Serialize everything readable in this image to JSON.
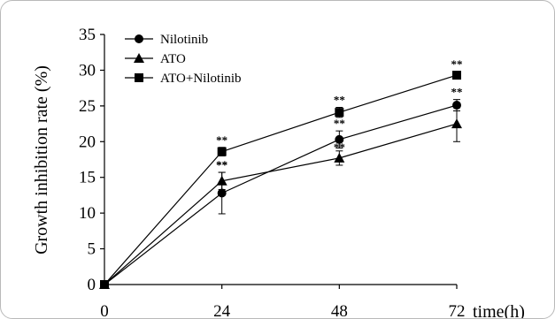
{
  "chart_data": {
    "type": "line",
    "x": [
      0,
      24,
      48,
      72
    ],
    "xlabel": "time(h)",
    "ylabel": "Growth inhibition rate (%)",
    "ylim": [
      0,
      35
    ],
    "yticks": [
      0,
      5,
      10,
      15,
      20,
      25,
      30,
      35
    ],
    "xticks": [
      0,
      24,
      48,
      72
    ],
    "legend_position": "top-left",
    "grid": false,
    "series": [
      {
        "name": "Nilotinib",
        "marker": "circle",
        "values": [
          0,
          12.8,
          20.3,
          25.1
        ],
        "errors": [
          0,
          2.9,
          1.2,
          0.8
        ],
        "annotations": [
          "",
          "",
          "**",
          "**"
        ]
      },
      {
        "name": "ATO",
        "marker": "triangle",
        "values": [
          0,
          14.5,
          17.7,
          22.5
        ],
        "errors": [
          0,
          1.2,
          1.0,
          2.5
        ],
        "annotations": [
          "",
          "**",
          "",
          ""
        ]
      },
      {
        "name": "ATO+Nilotinib",
        "marker": "square",
        "values": [
          0,
          18.6,
          24.1,
          29.3
        ],
        "errors": [
          0,
          0.6,
          0.7,
          0.5
        ],
        "annotations": [
          "",
          "**",
          "**",
          "**"
        ]
      }
    ],
    "extra_annotations": [
      {
        "x": 24,
        "text": "**"
      },
      {
        "x": 48,
        "text": "**"
      }
    ]
  }
}
